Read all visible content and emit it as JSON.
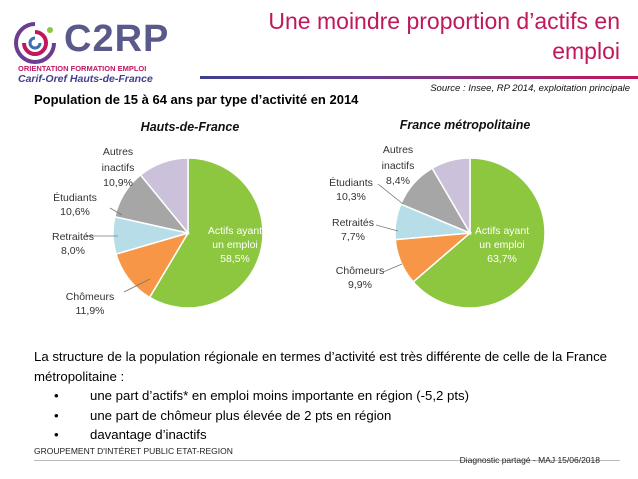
{
  "logo": {
    "brand": "C2RP",
    "line1": "ORIENTATION FORMATION EMPLOI",
    "line2": "Carif-Oref Hauts-de-France"
  },
  "title": "Une moindre proportion d’actifs en emploi",
  "source": "Source : Insee, RP 2014, exploitation principale",
  "subtitle": "Population de 15 à 64 ans par type d’activité en 2014",
  "colors": {
    "actifs": "#8dc63f",
    "chomeurs": "#f79646",
    "retraites": "#b7dee8",
    "etudiants": "#a6a6a6",
    "inactifs": "#ccc1da",
    "title_accent": "#c0175d"
  },
  "chart_data": [
    {
      "type": "pie",
      "title": "Hauts-de-France",
      "slices": [
        {
          "key": "actifs",
          "label": "Actifs ayant un emploi",
          "value_text": "58,5%",
          "value": 58.5
        },
        {
          "key": "chomeurs",
          "label": "Chômeurs",
          "value_text": "11,9%",
          "value": 11.9
        },
        {
          "key": "retraites",
          "label": "Retraités",
          "value_text": "8,0%",
          "value": 8.0
        },
        {
          "key": "etudiants",
          "label": "Étudiants",
          "value_text": "10,6%",
          "value": 10.6
        },
        {
          "key": "inactifs",
          "label": "Autres inactifs",
          "value_text": "10,9%",
          "value": 10.9
        }
      ]
    },
    {
      "type": "pie",
      "title": "France métropolitaine",
      "slices": [
        {
          "key": "actifs",
          "label": "Actifs ayant un emploi",
          "value_text": "63,7%",
          "value": 63.7
        },
        {
          "key": "chomeurs",
          "label": "Chômeurs",
          "value_text": "9,9%",
          "value": 9.9
        },
        {
          "key": "retraites",
          "label": "Retraités",
          "value_text": "7,7%",
          "value": 7.7
        },
        {
          "key": "etudiants",
          "label": "Étudiants",
          "value_text": "10,3%",
          "value": 10.3
        },
        {
          "key": "inactifs",
          "label": "Autres inactifs",
          "value_text": "8,4%",
          "value": 8.4
        }
      ]
    }
  ],
  "body": {
    "intro": "La structure de la population régionale en termes d’activité est très différente de celle de la France métropolitaine :",
    "bullets": [
      "une part d’actifs* en emploi moins importante en région (-5,2 pts)",
      "une part de chômeur plus élevée de 2 pts en région",
      "davantage d’inactifs"
    ]
  },
  "footer": {
    "left": "GROUPEMENT D'INTÉRET PUBLIC ETAT-REGION",
    "right": "Diagnostic partagé -  MAJ 15/06/2018"
  }
}
